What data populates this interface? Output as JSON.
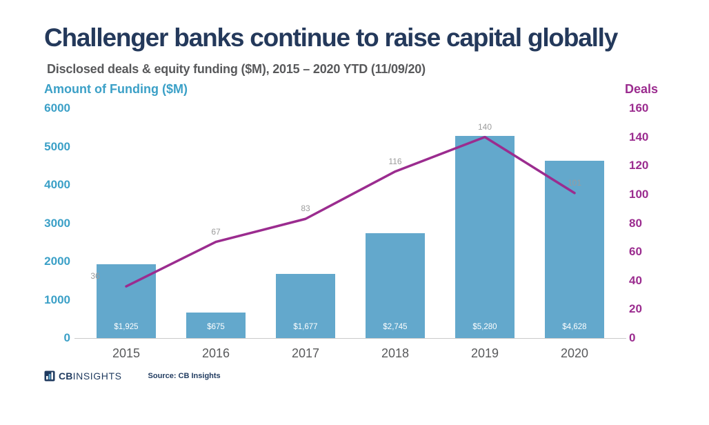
{
  "title": "Challenger banks continue to raise capital globally",
  "subtitle": "Disclosed deals & equity funding ($M), 2015 – 2020 YTD (11/09/20)",
  "chart_data": {
    "type": "bar+line",
    "categories": [
      "2015",
      "2016",
      "2017",
      "2018",
      "2019",
      "2020"
    ],
    "series": [
      {
        "name": "Amount of Funding ($M)",
        "type": "bar",
        "axis": "left",
        "values": [
          1925,
          675,
          1677,
          2745,
          5280,
          4628
        ],
        "labels": [
          "$1,925",
          "$675",
          "$1,677",
          "$2,745",
          "$5,280",
          "$4,628"
        ],
        "color": "#63A8CC"
      },
      {
        "name": "Deals",
        "type": "line",
        "axis": "right",
        "values": [
          36,
          67,
          83,
          116,
          140,
          101
        ],
        "color": "#9B2C8F"
      }
    ],
    "left_axis": {
      "label": "Amount of Funding ($M)",
      "min": 0,
      "max": 6000,
      "step": 1000,
      "color": "#3BA0C7"
    },
    "right_axis": {
      "label": "Deals",
      "min": 0,
      "max": 160,
      "step": 20,
      "color": "#9B2C8F"
    },
    "grid": false,
    "legend": "none"
  },
  "footer": {
    "logo_cb": "CB",
    "logo_insights": "INSIGHTS",
    "source": "Source: CB Insights"
  }
}
